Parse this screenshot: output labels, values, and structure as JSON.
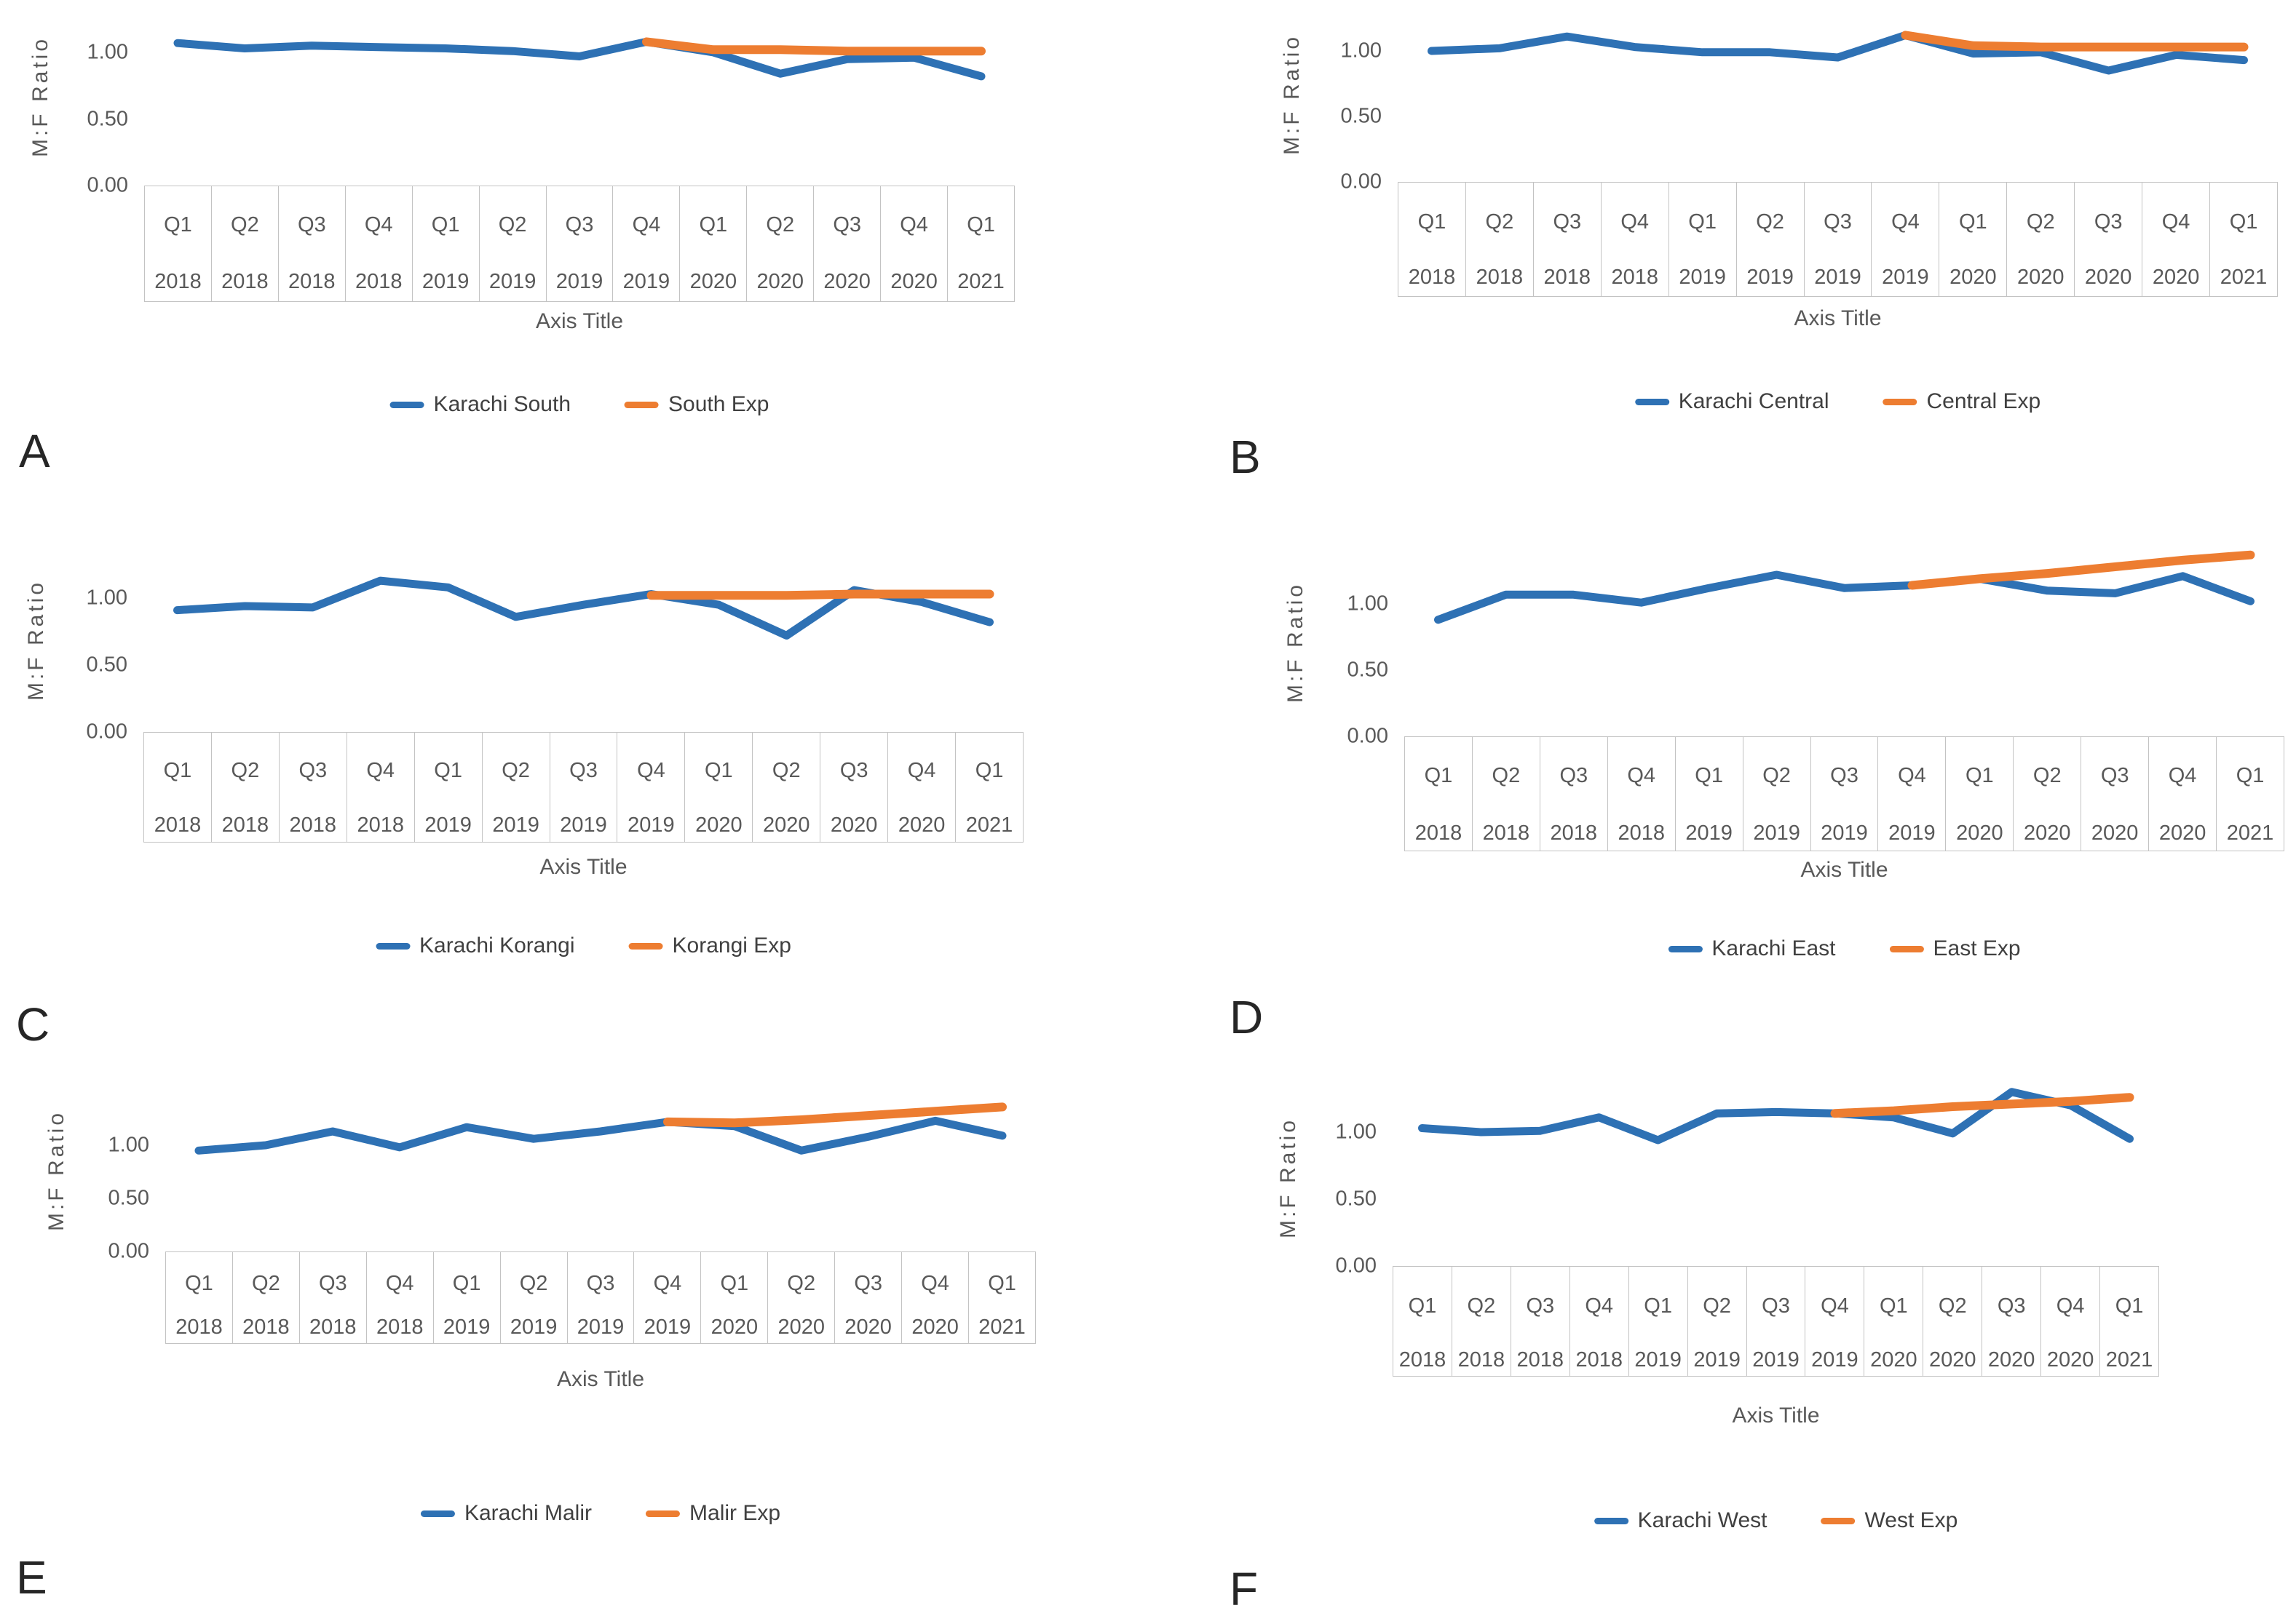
{
  "figure": {
    "background": "#ffffff"
  },
  "colors": {
    "actual_line": "#2E71B4",
    "expected_line": "#ED7D31",
    "axis_text": "#595959",
    "legend_text": "#404040",
    "grid_border": "#C3C3C3",
    "panel_letter": "#262626"
  },
  "axis": {
    "ylabel": "M:F Ratio",
    "xlabel": "Axis Title",
    "yticks": [
      "1.00",
      "0.50",
      "0.00"
    ]
  },
  "chart_data": [
    {
      "panel": "A",
      "type": "line",
      "title": "",
      "ylabel": "M:F Ratio",
      "xlabel": "Axis Title",
      "quarters": [
        "Q1",
        "Q2",
        "Q3",
        "Q4",
        "Q1",
        "Q2",
        "Q3",
        "Q4",
        "Q1",
        "Q2",
        "Q3",
        "Q4",
        "Q1"
      ],
      "years": [
        "2018",
        "2018",
        "2018",
        "2018",
        "2019",
        "2019",
        "2019",
        "2019",
        "2020",
        "2020",
        "2020",
        "2020",
        "2021"
      ],
      "yticks": [
        0.0,
        0.5,
        1.0
      ],
      "ylim": [
        0,
        1.3
      ],
      "grid": false,
      "legend_position": "bottom",
      "series": [
        {
          "name": "Karachi South",
          "color": "#2E71B4",
          "values": [
            1.07,
            1.03,
            1.05,
            1.04,
            1.03,
            1.01,
            0.97,
            1.08,
            1.0,
            0.84,
            0.95,
            0.96,
            0.82
          ]
        },
        {
          "name": "South Exp",
          "color": "#ED7D31",
          "values": [
            null,
            null,
            null,
            null,
            null,
            null,
            null,
            1.08,
            1.02,
            1.02,
            1.01,
            1.01,
            1.01
          ]
        }
      ]
    },
    {
      "panel": "B",
      "type": "line",
      "title": "",
      "ylabel": "M:F Ratio",
      "xlabel": "Axis Title",
      "quarters": [
        "Q1",
        "Q2",
        "Q3",
        "Q4",
        "Q1",
        "Q2",
        "Q3",
        "Q4",
        "Q1",
        "Q2",
        "Q3",
        "Q4",
        "Q1"
      ],
      "years": [
        "2018",
        "2018",
        "2018",
        "2018",
        "2019",
        "2019",
        "2019",
        "2019",
        "2020",
        "2020",
        "2020",
        "2020",
        "2021"
      ],
      "yticks": [
        0.0,
        0.5,
        1.0
      ],
      "ylim": [
        0,
        1.3
      ],
      "grid": false,
      "legend_position": "bottom",
      "series": [
        {
          "name": "Karachi Central",
          "color": "#2E71B4",
          "values": [
            1.0,
            1.02,
            1.11,
            1.03,
            0.99,
            0.99,
            0.95,
            1.12,
            0.98,
            0.99,
            0.85,
            0.97,
            0.93
          ]
        },
        {
          "name": "Central Exp",
          "color": "#ED7D31",
          "values": [
            null,
            null,
            null,
            null,
            null,
            null,
            null,
            1.12,
            1.04,
            1.03,
            1.03,
            1.03,
            1.03
          ]
        }
      ]
    },
    {
      "panel": "C",
      "type": "line",
      "title": "",
      "ylabel": "M:F Ratio",
      "xlabel": "Axis Title",
      "quarters": [
        "Q1",
        "Q2",
        "Q3",
        "Q4",
        "Q1",
        "Q2",
        "Q3",
        "Q4",
        "Q1",
        "Q2",
        "Q3",
        "Q4",
        "Q1"
      ],
      "years": [
        "2018",
        "2018",
        "2018",
        "2018",
        "2019",
        "2019",
        "2019",
        "2019",
        "2020",
        "2020",
        "2020",
        "2020",
        "2021"
      ],
      "yticks": [
        0.0,
        0.5,
        1.0
      ],
      "ylim": [
        0,
        1.3
      ],
      "grid": false,
      "legend_position": "bottom",
      "series": [
        {
          "name": "Karachi Korangi",
          "color": "#2E71B4",
          "values": [
            0.91,
            0.94,
            0.93,
            1.13,
            1.08,
            0.86,
            0.95,
            1.03,
            0.95,
            0.72,
            1.06,
            0.97,
            0.82
          ]
        },
        {
          "name": "Korangi Exp",
          "color": "#ED7D31",
          "values": [
            null,
            null,
            null,
            null,
            null,
            null,
            null,
            1.02,
            1.02,
            1.02,
            1.03,
            1.03,
            1.03
          ]
        }
      ]
    },
    {
      "panel": "D",
      "type": "line",
      "title": "",
      "ylabel": "M:F Ratio",
      "xlabel": "Axis Title",
      "quarters": [
        "Q1",
        "Q2",
        "Q3",
        "Q4",
        "Q1",
        "Q2",
        "Q3",
        "Q4",
        "Q1",
        "Q2",
        "Q3",
        "Q4",
        "Q1"
      ],
      "years": [
        "2018",
        "2018",
        "2018",
        "2018",
        "2019",
        "2019",
        "2019",
        "2019",
        "2020",
        "2020",
        "2020",
        "2020",
        "2021"
      ],
      "yticks": [
        0.0,
        0.5,
        1.0
      ],
      "ylim": [
        0,
        1.45
      ],
      "grid": false,
      "legend_position": "bottom",
      "series": [
        {
          "name": "Karachi East",
          "color": "#2E71B4",
          "values": [
            0.88,
            1.07,
            1.07,
            1.01,
            1.12,
            1.22,
            1.12,
            1.14,
            1.19,
            1.1,
            1.08,
            1.21,
            1.02
          ]
        },
        {
          "name": "East Exp",
          "color": "#ED7D31",
          "values": [
            null,
            null,
            null,
            null,
            null,
            null,
            null,
            1.14,
            1.19,
            1.23,
            1.28,
            1.33,
            1.37
          ]
        }
      ]
    },
    {
      "panel": "E",
      "type": "line",
      "title": "",
      "ylabel": "M:F Ratio",
      "xlabel": "Axis Title",
      "quarters": [
        "Q1",
        "Q2",
        "Q3",
        "Q4",
        "Q1",
        "Q2",
        "Q3",
        "Q4",
        "Q1",
        "Q2",
        "Q3",
        "Q4",
        "Q1"
      ],
      "years": [
        "2018",
        "2018",
        "2018",
        "2018",
        "2019",
        "2019",
        "2019",
        "2019",
        "2020",
        "2020",
        "2020",
        "2020",
        "2021"
      ],
      "yticks": [
        0.0,
        0.5,
        1.0
      ],
      "ylim": [
        0,
        1.45
      ],
      "grid": false,
      "legend_position": "bottom",
      "series": [
        {
          "name": "Karachi Malir",
          "color": "#2E71B4",
          "values": [
            0.95,
            1.0,
            1.13,
            0.98,
            1.17,
            1.06,
            1.13,
            1.22,
            1.18,
            0.95,
            1.08,
            1.23,
            1.09
          ]
        },
        {
          "name": "Malir Exp",
          "color": "#ED7D31",
          "values": [
            null,
            null,
            null,
            null,
            null,
            null,
            null,
            1.22,
            1.21,
            1.24,
            1.28,
            1.32,
            1.36
          ]
        }
      ]
    },
    {
      "panel": "F",
      "type": "line",
      "title": "",
      "ylabel": "M:F Ratio",
      "xlabel": "Axis Title",
      "quarters": [
        "Q1",
        "Q2",
        "Q3",
        "Q4",
        "Q1",
        "Q2",
        "Q3",
        "Q4",
        "Q1",
        "Q2",
        "Q3",
        "Q4",
        "Q1"
      ],
      "years": [
        "2018",
        "2018",
        "2018",
        "2018",
        "2019",
        "2019",
        "2019",
        "2019",
        "2020",
        "2020",
        "2020",
        "2020",
        "2021"
      ],
      "yticks": [
        0.0,
        0.5,
        1.0
      ],
      "ylim": [
        0,
        1.45
      ],
      "grid": false,
      "legend_position": "bottom",
      "series": [
        {
          "name": "Karachi West",
          "color": "#2E71B4",
          "values": [
            1.03,
            1.0,
            1.01,
            1.11,
            0.94,
            1.14,
            1.15,
            1.14,
            1.11,
            0.99,
            1.3,
            1.2,
            0.95
          ]
        },
        {
          "name": "West Exp",
          "color": "#ED7D31",
          "values": [
            null,
            null,
            null,
            null,
            null,
            null,
            null,
            1.14,
            1.16,
            1.19,
            1.21,
            1.23,
            1.26
          ]
        }
      ]
    }
  ]
}
